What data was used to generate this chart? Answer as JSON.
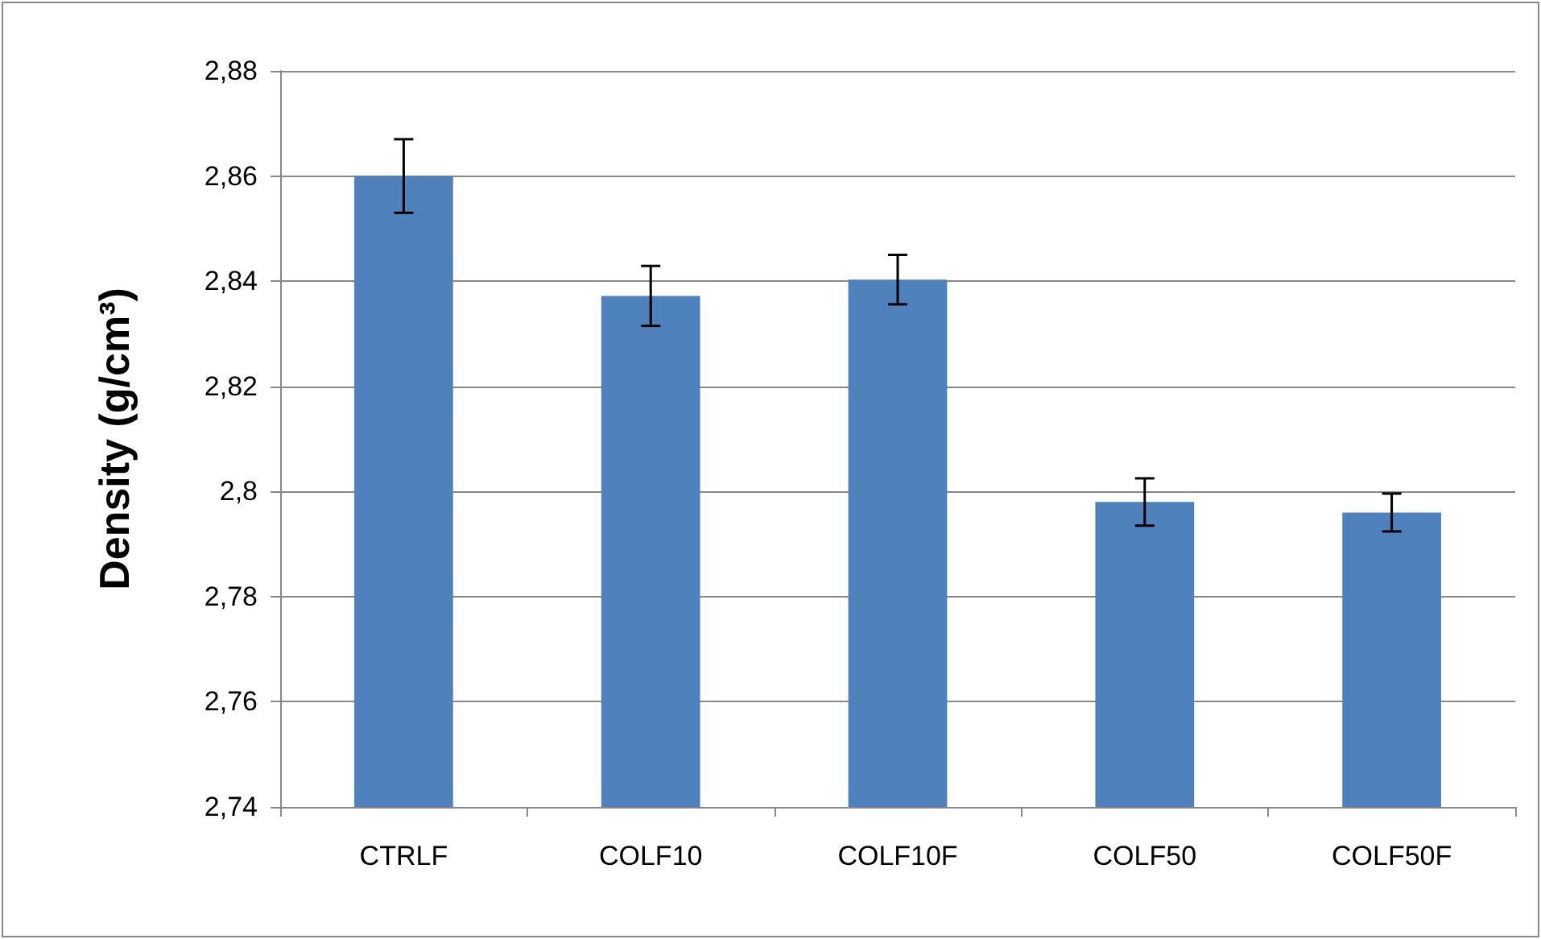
{
  "chart_data": {
    "type": "bar",
    "ylabel": "Density (g/cm³)",
    "categories": [
      "CTRLF",
      "COLF10",
      "COLF10F",
      "COLF50",
      "COLF50F"
    ],
    "values": [
      2.86,
      2.8372,
      2.8403,
      2.798,
      2.796
    ],
    "errors": [
      0.007,
      0.0057,
      0.0047,
      0.0045,
      0.0036
    ],
    "color": "#4f81bd",
    "ylim": [
      2.74,
      2.88
    ],
    "yticks": [
      {
        "value": 2.74,
        "label": "2,74"
      },
      {
        "value": 2.76,
        "label": "2,76"
      },
      {
        "value": 2.78,
        "label": "2,78"
      },
      {
        "value": 2.8,
        "label": "2,8"
      },
      {
        "value": 2.82,
        "label": "2,82"
      },
      {
        "value": 2.84,
        "label": "2,84"
      },
      {
        "value": 2.86,
        "label": "2,86"
      },
      {
        "value": 2.88,
        "label": "2,88"
      }
    ],
    "grid": "y"
  }
}
